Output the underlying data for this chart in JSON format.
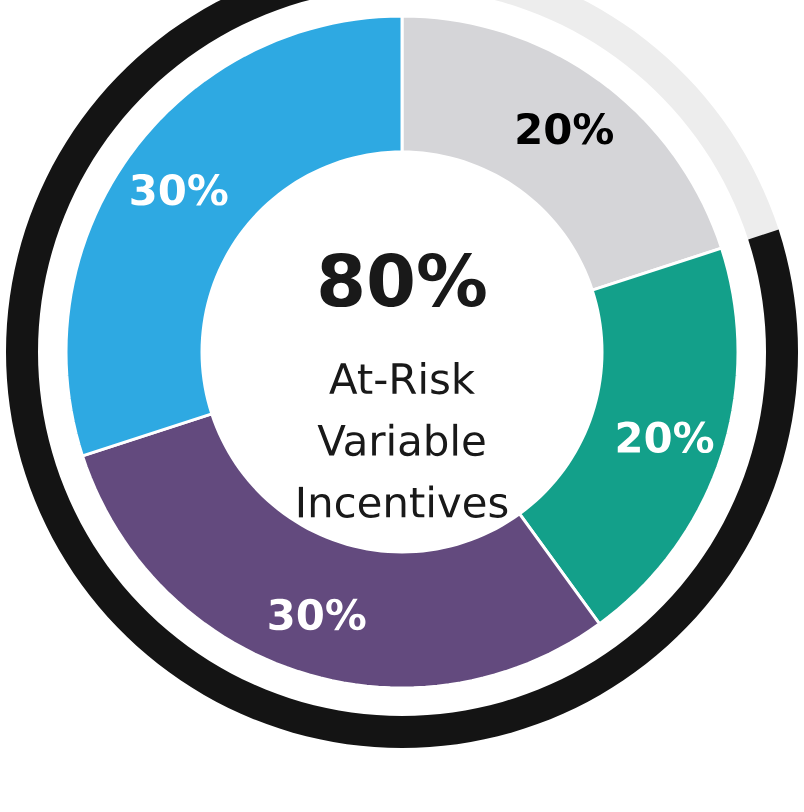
{
  "chart_data": [
    {
      "type": "donut",
      "title": "80%",
      "subtitle": "At-Risk Variable Incentives",
      "categories": [
        null,
        null,
        null,
        null
      ],
      "values": [
        20,
        20,
        30,
        30
      ],
      "colors": [
        "#d5d5d8",
        "#13a08a",
        "#634a7e",
        "#2ea9e2"
      ],
      "value_labels": [
        "20%",
        "20%",
        "30%",
        "30%"
      ]
    },
    {
      "type": "donut",
      "categories": [
        null,
        null
      ],
      "values": [
        20,
        80
      ],
      "colors": [
        "#ededed",
        "#141414"
      ]
    }
  ]
}
